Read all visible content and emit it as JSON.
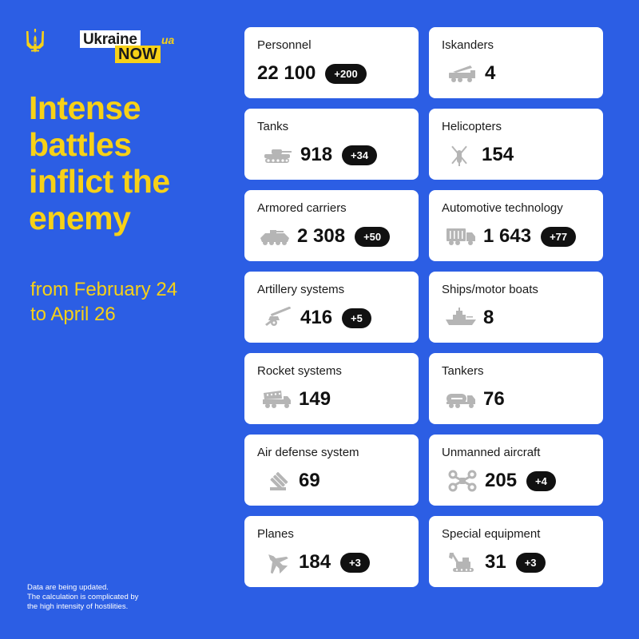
{
  "brand": {
    "logo_line1": "Ukraine",
    "logo_line2": "NOW",
    "logo_suffix": "ua",
    "emblem_icon": "trident-icon"
  },
  "headline": [
    "Intense",
    "battles",
    "inflict the",
    "enemy"
  ],
  "period": [
    "from February 24",
    "to April 26"
  ],
  "footnote": [
    "Data are being updated.",
    "The calculation is complicated by",
    "the high intensity of hostilities."
  ],
  "colors": {
    "background": "#2c5ee4",
    "accent_yellow": "#f7d117",
    "card": "#ffffff",
    "badge": "#111111",
    "icon_gray": "#b5b5b5"
  },
  "stats": [
    {
      "label": "Personnel",
      "value": "22 100",
      "delta": "+200",
      "icon": ""
    },
    {
      "label": "Iskanders",
      "value": "4",
      "delta": "",
      "icon": "missile-launcher-icon"
    },
    {
      "label": "Tanks",
      "value": "918",
      "delta": "+34",
      "icon": "tank-icon"
    },
    {
      "label": "Helicopters",
      "value": "154",
      "delta": "",
      "icon": "helicopter-icon"
    },
    {
      "label": "Armored carriers",
      "value": "2 308",
      "delta": "+50",
      "icon": "armored-carrier-icon"
    },
    {
      "label": "Automotive technology",
      "value": "1 643",
      "delta": "+77",
      "icon": "truck-icon"
    },
    {
      "label": "Artillery systems",
      "value": "416",
      "delta": "+5",
      "icon": "artillery-icon"
    },
    {
      "label": "Ships/motor boats",
      "value": "8",
      "delta": "",
      "icon": "ship-icon"
    },
    {
      "label": "Rocket systems",
      "value": "149",
      "delta": "",
      "icon": "rocket-system-icon"
    },
    {
      "label": "Tankers",
      "value": "76",
      "delta": "",
      "icon": "tanker-truck-icon"
    },
    {
      "label": "Air defense system",
      "value": "69",
      "delta": "",
      "icon": "air-defense-icon"
    },
    {
      "label": "Unmanned aircraft",
      "value": "205",
      "delta": "+4",
      "icon": "drone-icon"
    },
    {
      "label": "Planes",
      "value": "184",
      "delta": "+3",
      "icon": "plane-icon"
    },
    {
      "label": "Special equipment",
      "value": "31",
      "delta": "+3",
      "icon": "excavator-icon"
    }
  ]
}
